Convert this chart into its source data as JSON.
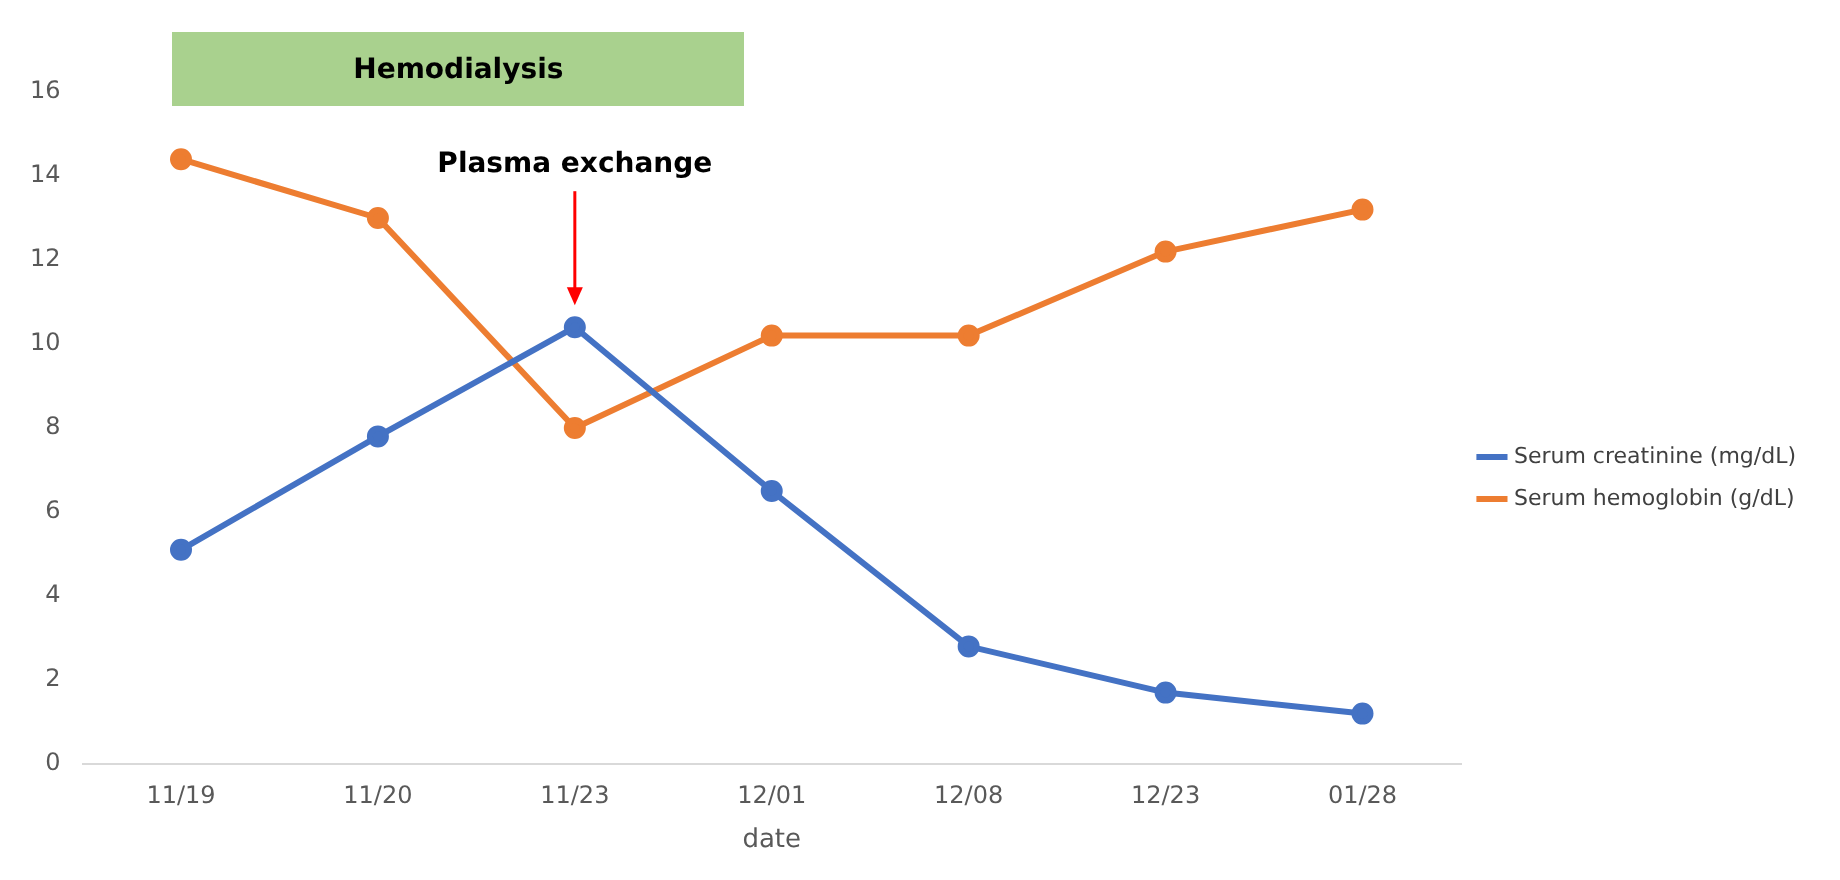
{
  "chart_data": {
    "type": "line",
    "xlabel": "date",
    "categories": [
      "11/19",
      "11/20",
      "11/23",
      "12/01",
      "12/08",
      "12/23",
      "01/28"
    ],
    "series": [
      {
        "name": "Serum creatinine (mg/dL)",
        "color": "#4472c4",
        "values": [
          5.1,
          7.8,
          10.4,
          6.5,
          2.8,
          1.7,
          1.2
        ]
      },
      {
        "name": "Serum hemoglobin (g/dL)",
        "color": "#ed7d31",
        "values": [
          14.4,
          13.0,
          8.0,
          10.2,
          10.2,
          12.2,
          13.2
        ]
      }
    ],
    "ylim": [
      0,
      16
    ],
    "yticks": [
      0,
      2,
      4,
      6,
      8,
      10,
      12,
      14,
      16
    ],
    "grid": false,
    "legend": "right",
    "marker": "circle",
    "line_style": "solid",
    "annotations": [
      "Hemodialysis",
      "Plasma exchange"
    ]
  }
}
